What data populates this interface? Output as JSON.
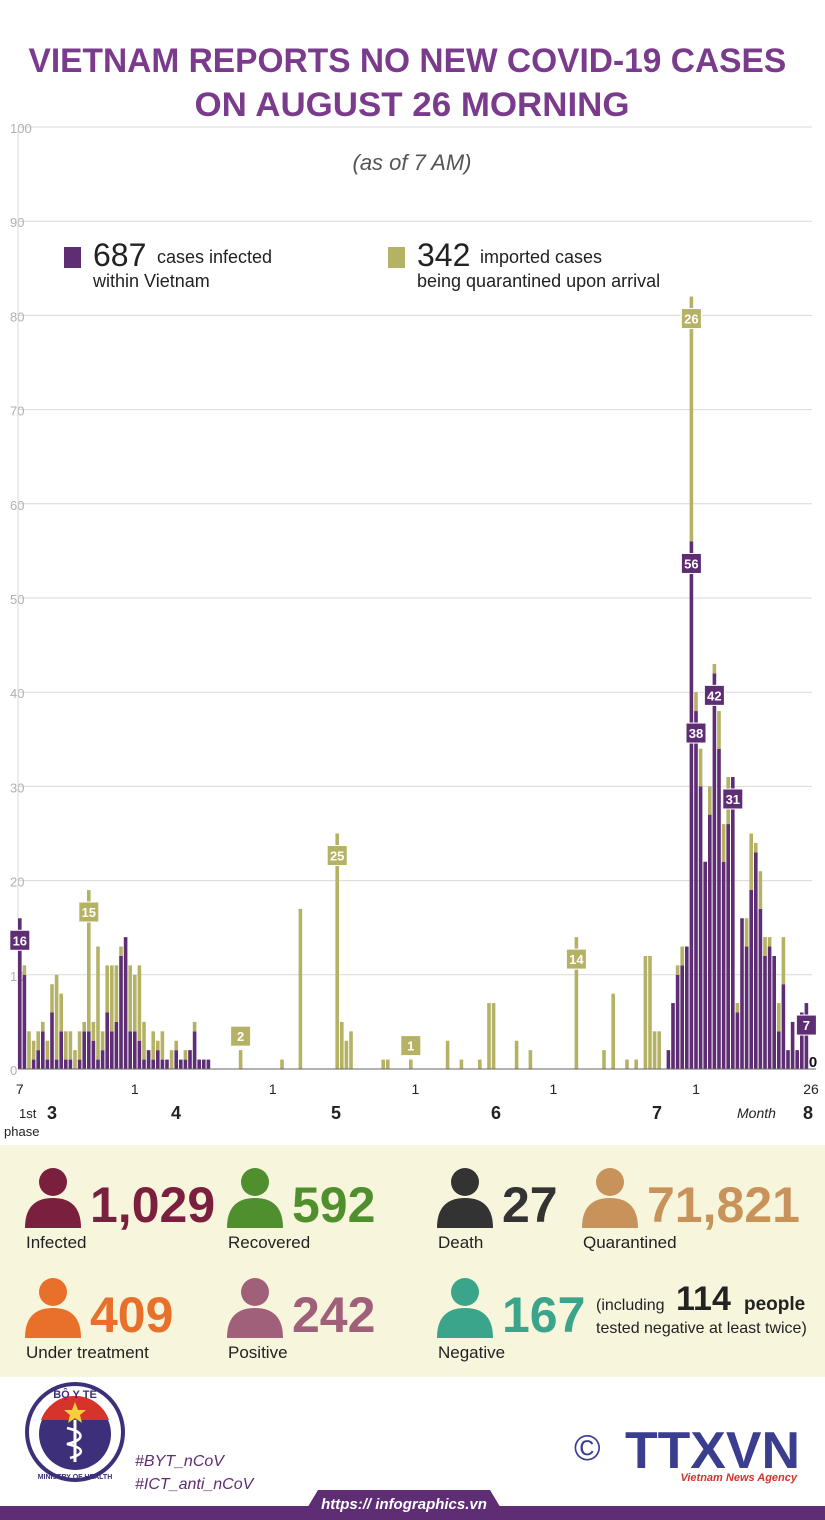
{
  "chart_data": {
    "type": "bar",
    "stacked": true,
    "title": "VIETNAM REPORTS NO NEW COVID-19 CASES ON AUGUST 26 MORNING",
    "subtitle": "(as of 7 AM)",
    "ylim": [
      0,
      100
    ],
    "yticks": [
      0,
      10,
      20,
      30,
      40,
      50,
      60,
      70,
      80,
      90,
      100
    ],
    "grid": true,
    "categories": [
      "7",
      null,
      null,
      null,
      null,
      null,
      null,
      null,
      null,
      null,
      null,
      null,
      null,
      null,
      null,
      null,
      null,
      null,
      null,
      null,
      null,
      null,
      null,
      null,
      null,
      "1",
      null,
      null,
      null,
      null,
      null,
      null,
      null,
      null,
      null,
      null,
      null,
      null,
      null,
      null,
      null,
      null,
      null,
      null,
      null,
      null,
      null,
      null,
      null,
      null,
      null,
      null,
      null,
      null,
      null,
      "1",
      null,
      null,
      null,
      null,
      null,
      null,
      null,
      null,
      null,
      null,
      null,
      null,
      null,
      null,
      null,
      null,
      null,
      null,
      null,
      null,
      null,
      null,
      null,
      null,
      null,
      null,
      null,
      null,
      null,
      null,
      "1",
      null,
      null,
      null,
      null,
      null,
      null,
      null,
      null,
      null,
      null,
      null,
      null,
      null,
      null,
      null,
      null,
      null,
      null,
      null,
      null,
      null,
      null,
      null,
      null,
      null,
      null,
      null,
      null,
      null,
      "1",
      null,
      null,
      null,
      null,
      null,
      null,
      null,
      null,
      null,
      null,
      null,
      null,
      null,
      null,
      null,
      null,
      null,
      null,
      null,
      null,
      null,
      null,
      null,
      null,
      null,
      null,
      null,
      null,
      null,
      null,
      "1",
      null,
      null,
      null,
      null,
      null,
      null,
      null,
      null,
      null,
      null,
      null,
      null,
      null,
      null,
      null,
      null,
      null,
      null,
      null,
      null,
      null,
      null,
      null,
      null,
      "26"
    ],
    "months": [
      "3",
      "4",
      "5",
      "6",
      "7",
      "8"
    ],
    "month_label": "Month",
    "phase_label": "1st phase",
    "series": [
      {
        "name": "cases infected within Vietnam",
        "total": 687,
        "color": "#5e2d73",
        "labeled": [
          0,
          146,
          147,
          151,
          155,
          171,
          172
        ],
        "values": [
          16,
          10,
          0,
          1,
          2,
          4,
          1,
          6,
          1,
          4,
          1,
          1,
          0,
          1,
          4,
          4,
          3,
          1,
          2,
          6,
          4,
          5,
          12,
          14,
          4,
          4,
          3,
          1,
          2,
          1,
          2,
          1,
          1,
          0,
          2,
          1,
          1,
          2,
          4,
          1,
          1,
          1,
          0,
          0,
          0,
          0,
          0,
          0,
          0,
          0,
          0,
          0,
          0,
          0,
          0,
          0,
          0,
          0,
          0,
          0,
          0,
          0,
          0,
          0,
          0,
          0,
          0,
          0,
          0,
          0,
          0,
          0,
          0,
          0,
          0,
          0,
          0,
          0,
          0,
          0,
          0,
          0,
          0,
          0,
          0,
          0,
          0,
          0,
          0,
          0,
          0,
          0,
          0,
          0,
          0,
          0,
          0,
          0,
          0,
          0,
          0,
          0,
          0,
          0,
          0,
          0,
          0,
          0,
          0,
          0,
          0,
          0,
          0,
          0,
          0,
          0,
          0,
          0,
          0,
          0,
          0,
          0,
          0,
          0,
          0,
          0,
          0,
          0,
          0,
          0,
          0,
          0,
          0,
          0,
          0,
          0,
          0,
          0,
          0,
          0,
          0,
          2,
          7,
          10,
          11,
          13,
          56,
          38,
          30,
          22,
          27,
          42,
          34,
          22,
          26,
          31,
          6,
          16,
          13,
          19,
          23,
          17,
          12,
          13,
          12,
          4,
          9,
          2,
          5,
          2,
          6,
          7,
          0
        ]
      },
      {
        "name": "imported cases being quarantined upon arrival",
        "total": 342,
        "color": "#b5b265",
        "labeled": [
          15,
          48,
          69,
          85,
          121,
          146
        ],
        "values": [
          0,
          1,
          4,
          2,
          2,
          1,
          2,
          3,
          9,
          4,
          3,
          3,
          2,
          3,
          1,
          15,
          2,
          12,
          2,
          5,
          7,
          6,
          1,
          0,
          7,
          6,
          8,
          4,
          0,
          3,
          1,
          3,
          0,
          2,
          1,
          0,
          1,
          0,
          1,
          0,
          0,
          0,
          0,
          0,
          0,
          0,
          0,
          0,
          2,
          0,
          0,
          0,
          0,
          0,
          0,
          0,
          0,
          1,
          0,
          0,
          0,
          17,
          0,
          0,
          0,
          0,
          0,
          0,
          0,
          25,
          5,
          3,
          4,
          0,
          0,
          0,
          0,
          0,
          0,
          1,
          1,
          0,
          0,
          0,
          0,
          1,
          0,
          0,
          0,
          0,
          0,
          0,
          0,
          3,
          0,
          0,
          1,
          0,
          0,
          0,
          1,
          0,
          7,
          7,
          0,
          0,
          0,
          0,
          3,
          0,
          0,
          2,
          0,
          0,
          0,
          0,
          0,
          0,
          0,
          0,
          0,
          14,
          0,
          0,
          0,
          0,
          0,
          2,
          0,
          8,
          0,
          0,
          1,
          0,
          1,
          0,
          12,
          12,
          4,
          4,
          0,
          0,
          0,
          1,
          2,
          0,
          26,
          2,
          4,
          0,
          3,
          1,
          4,
          4,
          5,
          0,
          1,
          0,
          3,
          6,
          1,
          4,
          2,
          1,
          0,
          3,
          5,
          0,
          0,
          0,
          0,
          0,
          0
        ]
      }
    ]
  },
  "stats": [
    {
      "value": "1,029",
      "label": "Infected",
      "color": "#7a1f3d"
    },
    {
      "value": "592",
      "label": "Recovered",
      "color": "#4f8f2e"
    },
    {
      "value": "27",
      "label": "Death",
      "color": "#333333"
    },
    {
      "value": "71,821",
      "label": "Quarantined",
      "color": "#c8935a"
    },
    {
      "value": "409",
      "label": "Under treatment",
      "color": "#e8702a"
    },
    {
      "value": "242",
      "label": "Positive",
      "color": "#a0607a"
    },
    {
      "value": "167",
      "label": "Negative",
      "color": "#3aa58a"
    }
  ],
  "note": {
    "before": "(including",
    "number": "114",
    "after": "people",
    "line2": "tested negative at least twice)"
  },
  "footer": {
    "logo_top": "BỘ Y TẾ",
    "logo_bottom": "MINISTRY OF HEALTH",
    "hashtags": [
      "#BYT_nCoV",
      "#ICT_anti_nCoV"
    ],
    "copyright": "©",
    "agency": "TTXVN",
    "agency_name": "Vietnam News Agency",
    "url": "https:// infographics.vn"
  }
}
